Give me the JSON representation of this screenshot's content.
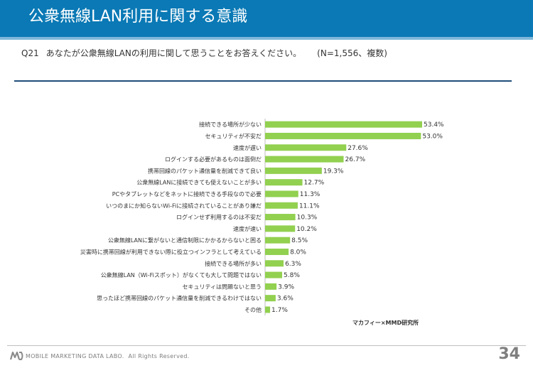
{
  "title": "公衆無線LAN利用に関する意識",
  "question": {
    "label": "Q21",
    "text": "あなたが公衆無線LANの利用に関して思うことをお答えください。",
    "note": "(N=1,556、複数)"
  },
  "source": "マカフィー×MMD研究所",
  "footer": {
    "company": "MOBILE MARKETING DATA LABO.",
    "rights": "All Rights Reserved."
  },
  "page_number": "34",
  "colors": {
    "header": "#0a79b5",
    "bar": "#92d050",
    "divider": "#1f4e79"
  },
  "chart_data": {
    "type": "bar",
    "orientation": "horizontal",
    "unit": "%",
    "categories": [
      "接続できる場所が少ない",
      "セキュリティが不安だ",
      "速度が遅い",
      "ログインする必要があるものは面倒だ",
      "携帯回線のパケット通信量を削減できて良い",
      "公衆無線LANに接続できても使えないことが多い",
      "PCやタブレットなどをネットに接続できる手段なので必要",
      "いつのまにか知らないWi-Fiに接続されていることがあり嫌だ",
      "ログインせず利用するのは不安だ",
      "速度が速い",
      "公衆無線LANに繋がないと通信制限にかかるからないと困る",
      "災害時に携帯回線が利用できない際に役立つインフラとして考えている",
      "接続できる場所が多い",
      "公衆無線LAN（Wi-Fiスポット）がなくても大して問題ではない",
      "セキュリティは問題ないと思う",
      "思ったほど携帯回線のパケット通信量を削減できるわけではない",
      "その他"
    ],
    "values": [
      53.4,
      53.0,
      27.6,
      26.7,
      19.3,
      12.7,
      11.3,
      11.1,
      10.3,
      10.2,
      8.5,
      8.0,
      6.3,
      5.8,
      3.9,
      3.6,
      1.7
    ],
    "labels": [
      "53.4%",
      "53.0%",
      "27.6%",
      "26.7%",
      "19.3%",
      "12.7%",
      "11.3%",
      "11.1%",
      "10.3%",
      "10.2%",
      "8.5%",
      "8.0%",
      "6.3%",
      "5.8%",
      "3.9%",
      "3.6%",
      "1.7%"
    ],
    "xlim": [
      0,
      53.4
    ],
    "grid": false,
    "legend": "none"
  }
}
